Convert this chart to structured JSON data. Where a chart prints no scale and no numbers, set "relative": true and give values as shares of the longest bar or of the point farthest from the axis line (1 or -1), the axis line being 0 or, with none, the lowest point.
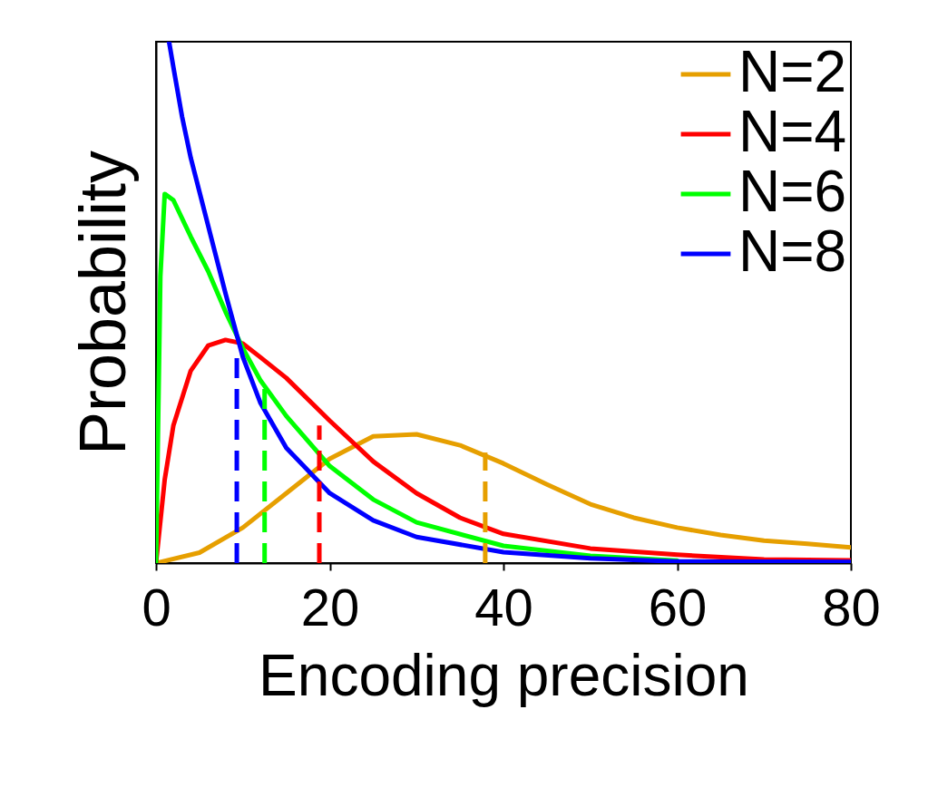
{
  "chart_data": {
    "type": "line",
    "xlabel": "Encoding precision",
    "ylabel": "Probability",
    "relative": true,
    "xlim": [
      0,
      80
    ],
    "xticks": [
      0,
      20,
      40,
      60,
      80
    ],
    "grid": false,
    "legend": "top right",
    "line_style": "solid",
    "series": [
      {
        "name": "N=2",
        "color": "#e69f00",
        "x": [
          0,
          5,
          10,
          15,
          20,
          25,
          30,
          35,
          40,
          45,
          50,
          55,
          60,
          65,
          70,
          75,
          80
        ],
        "values": [
          0,
          0.02,
          0.068,
          0.134,
          0.2,
          0.243,
          0.247,
          0.226,
          0.191,
          0.151,
          0.113,
          0.087,
          0.068,
          0.054,
          0.043,
          0.037,
          0.03
        ]
      },
      {
        "name": "N=4",
        "color": "#ff0000",
        "x": [
          0,
          1,
          2,
          4,
          6,
          8,
          10,
          12,
          15,
          20,
          25,
          30,
          35,
          40,
          50,
          60,
          70,
          80
        ],
        "values": [
          0,
          0.16,
          0.264,
          0.369,
          0.417,
          0.428,
          0.421,
          0.395,
          0.355,
          0.273,
          0.195,
          0.134,
          0.087,
          0.056,
          0.028,
          0.016,
          0.007,
          0.005
        ]
      },
      {
        "name": "N=6",
        "color": "#00ff00",
        "x": [
          0,
          0.5,
          1,
          2,
          4,
          6,
          8,
          10,
          12,
          15,
          20,
          25,
          30,
          40,
          50,
          60
        ],
        "values": [
          0,
          0.55,
          0.708,
          0.696,
          0.626,
          0.56,
          0.482,
          0.412,
          0.351,
          0.282,
          0.186,
          0.122,
          0.078,
          0.033,
          0.014,
          0.005
        ]
      },
      {
        "name": "N=8",
        "color": "#0000ff",
        "x": [
          1.5,
          2,
          3,
          4,
          6,
          8,
          10,
          12,
          15,
          20,
          25,
          30,
          40,
          50,
          60,
          80
        ],
        "values": [
          1,
          0.951,
          0.856,
          0.777,
          0.647,
          0.517,
          0.395,
          0.308,
          0.221,
          0.134,
          0.082,
          0.05,
          0.021,
          0.009,
          0.003,
          0.002
        ]
      },
      {
        "color": "#e69f00",
        "line_style": "dashed",
        "x": [
          37.9,
          37.9
        ],
        "values": [
          0,
          0.212
        ]
      },
      {
        "color": "#ff0000",
        "line_style": "dashed",
        "x": [
          18.8,
          18.8
        ],
        "values": [
          0,
          0.264
        ]
      },
      {
        "color": "#00ff00",
        "line_style": "dashed",
        "x": [
          12.5,
          12.5
        ],
        "values": [
          0,
          0.351
        ]
      },
      {
        "color": "#0000ff",
        "line_style": "dashed",
        "x": [
          9.3,
          9.3
        ],
        "values": [
          0,
          0.395
        ]
      }
    ]
  }
}
